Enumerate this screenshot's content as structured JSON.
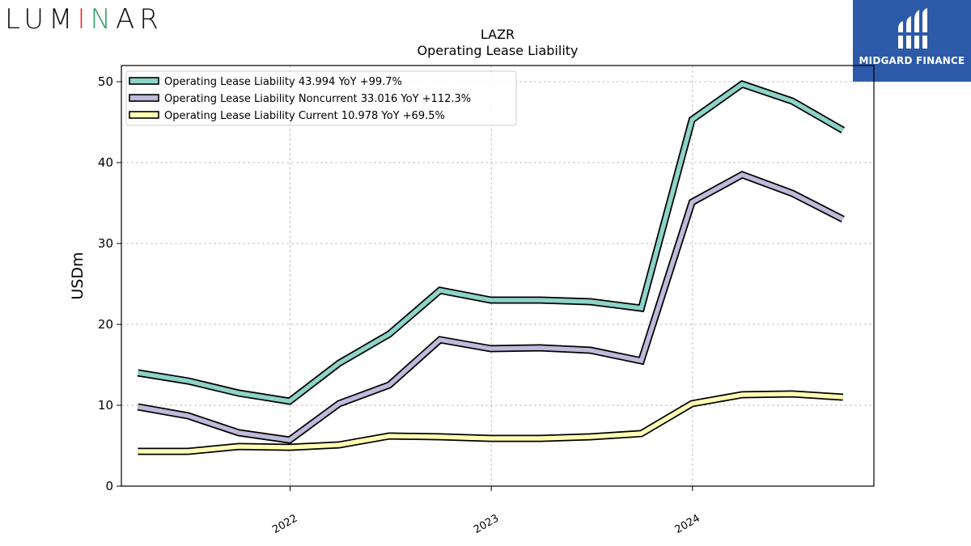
{
  "branding": {
    "left_logo_letters": [
      "L",
      "U",
      "M",
      "I",
      "N",
      "A",
      "R"
    ],
    "right_logo_text": "MIDGARD FINANCE",
    "accent_colors": {
      "i_red": "#e3342f",
      "i_green": "#38a169",
      "i_blue": "#3b5ccc",
      "right_bg": "#2c5aa8"
    }
  },
  "chart_data": {
    "type": "line",
    "title": "LAZR",
    "subtitle": "Operating Lease Liability",
    "xlabel": "",
    "ylabel": "USDm",
    "ylim": [
      0,
      52
    ],
    "xlim": [
      "2021-03-01",
      "2024-11-25"
    ],
    "yticks": [
      0,
      10,
      20,
      30,
      40,
      50
    ],
    "xticks": [
      "2022",
      "2023",
      "2024"
    ],
    "grid": true,
    "legend_position": "top-left",
    "x": [
      "2021-03-31",
      "2021-06-30",
      "2021-09-30",
      "2021-12-31",
      "2022-03-31",
      "2022-06-30",
      "2022-09-30",
      "2022-12-31",
      "2023-03-31",
      "2023-06-30",
      "2023-09-30",
      "2023-12-31",
      "2024-03-31",
      "2024-06-30",
      "2024-09-30"
    ],
    "series": [
      {
        "name": "Operating Lease Liability  43.994 YoY +99.7%",
        "color": "#8dd3c7",
        "values": [
          14.0,
          13.0,
          11.5,
          10.5,
          15.2,
          18.8,
          24.2,
          23.0,
          23.0,
          22.8,
          22.0,
          45.3,
          49.7,
          47.6,
          44.0
        ]
      },
      {
        "name": "Operating Lease Liability Noncurrent  33.016 YoY +112.3%",
        "color": "#bebada",
        "values": [
          9.8,
          8.7,
          6.6,
          5.7,
          10.2,
          12.5,
          18.1,
          17.0,
          17.1,
          16.8,
          15.5,
          35.1,
          38.5,
          36.2,
          33.0
        ]
      },
      {
        "name": "Operating Lease Liability Current  10.978 YoY +69.5%",
        "color": "#ffffb3",
        "values": [
          4.3,
          4.3,
          4.9,
          4.8,
          5.1,
          6.2,
          6.1,
          5.9,
          5.9,
          6.1,
          6.5,
          10.2,
          11.3,
          11.4,
          11.0
        ]
      }
    ]
  }
}
